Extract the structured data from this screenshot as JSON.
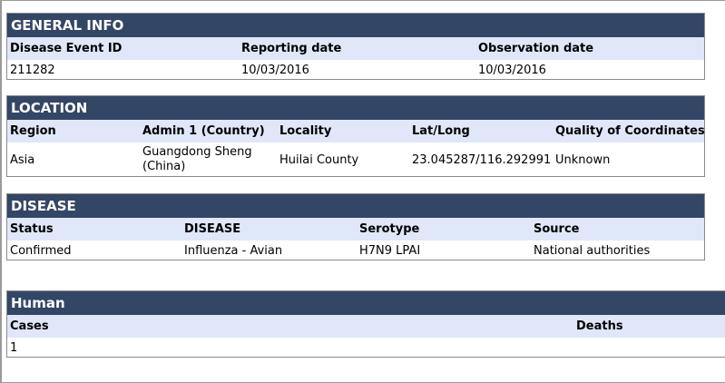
{
  "general_info": {
    "title": "GENERAL INFO",
    "columns": [
      "Disease Event ID",
      "Reporting date",
      "Observation date"
    ],
    "values": [
      "211282",
      "10/03/2016",
      "10/03/2016"
    ]
  },
  "location": {
    "title": "LOCATION",
    "columns": [
      "Region",
      "Admin 1 (Country)",
      "Locality",
      "Lat/Long",
      "Quality of Coordinates"
    ],
    "values": [
      "Asia",
      "Guangdong Sheng (China)",
      "Huilai County",
      "23.045287/116.292991",
      "Unknown"
    ]
  },
  "disease": {
    "title": "DISEASE",
    "columns": [
      "Status",
      "DISEASE",
      "Serotype",
      "Source"
    ],
    "values": [
      "Confirmed",
      "Influenza - Avian",
      "H7N9 LPAI",
      "National authorities"
    ]
  },
  "human": {
    "title": "Human",
    "columns": [
      "Cases",
      "Deaths"
    ],
    "values": [
      "1",
      ""
    ]
  },
  "colors": {
    "header_bg": "#344666",
    "column_header_bg": "#dfe7f8"
  }
}
